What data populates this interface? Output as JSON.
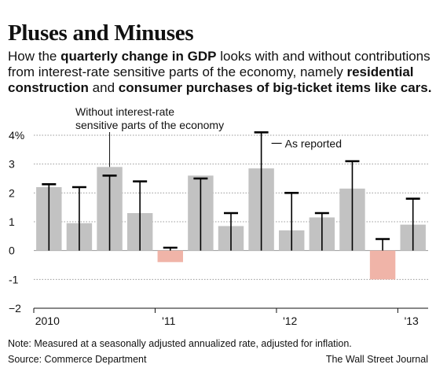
{
  "title": "Pluses and Minuses",
  "subtitle": {
    "part1": "How the ",
    "bold1": "quarterly change in GDP",
    "part2": " looks with and without contributions from interest-rate sensitive parts of the economy, namely ",
    "bold2": "residential construction",
    "part3": " and ",
    "bold3": "consumer purchases of big-ticket items like cars.",
    "part4": ""
  },
  "annotations": {
    "without_line1": "Without interest-rate",
    "without_line2": "sensitive parts of the economy",
    "as_reported": "As reported"
  },
  "note": "Note: Measured at a seasonally adjusted annualized rate, adjusted for inflation.",
  "source": "Source: Commerce Department",
  "credit": "The Wall Street Journal",
  "colors": {
    "bar_positive": "#c2c2c2",
    "bar_negative": "#f0b4a8",
    "reported_line": "#000000",
    "grid": "#9a9a9a"
  },
  "chart_data": {
    "type": "bar",
    "categories": [
      "2010 Q1",
      "2010 Q2",
      "2010 Q3",
      "2010 Q4",
      "2011 Q1",
      "2011 Q2",
      "2011 Q3",
      "2011 Q4",
      "2012 Q1",
      "2012 Q2",
      "2012 Q3",
      "2012 Q4",
      "2013 Q1"
    ],
    "series": [
      {
        "name": "Without interest-rate sensitive parts of the economy",
        "mark": "bar",
        "values": [
          2.2,
          0.95,
          2.9,
          1.3,
          -0.4,
          2.6,
          0.85,
          2.85,
          0.7,
          1.15,
          2.15,
          -1.0,
          0.9
        ]
      },
      {
        "name": "As reported",
        "mark": "line",
        "values": [
          2.3,
          2.2,
          2.6,
          2.4,
          0.1,
          2.5,
          1.3,
          4.1,
          2.0,
          1.3,
          3.1,
          0.4,
          1.8
        ]
      }
    ],
    "ylim": [
      -2,
      4
    ],
    "yticks": [
      {
        "v": 4,
        "label": "4%"
      },
      {
        "v": 3,
        "label": "3"
      },
      {
        "v": 2,
        "label": "2"
      },
      {
        "v": 1,
        "label": "1"
      },
      {
        "v": 0,
        "label": "0"
      },
      {
        "v": -1,
        "label": "-1"
      },
      {
        "v": -2,
        "label": "−2"
      }
    ],
    "xticks": [
      {
        "index": 0,
        "label": "2010"
      },
      {
        "index": 4,
        "label": "'11"
      },
      {
        "index": 8,
        "label": "'12"
      },
      {
        "index": 12,
        "label": "'13"
      }
    ],
    "grid": true
  }
}
